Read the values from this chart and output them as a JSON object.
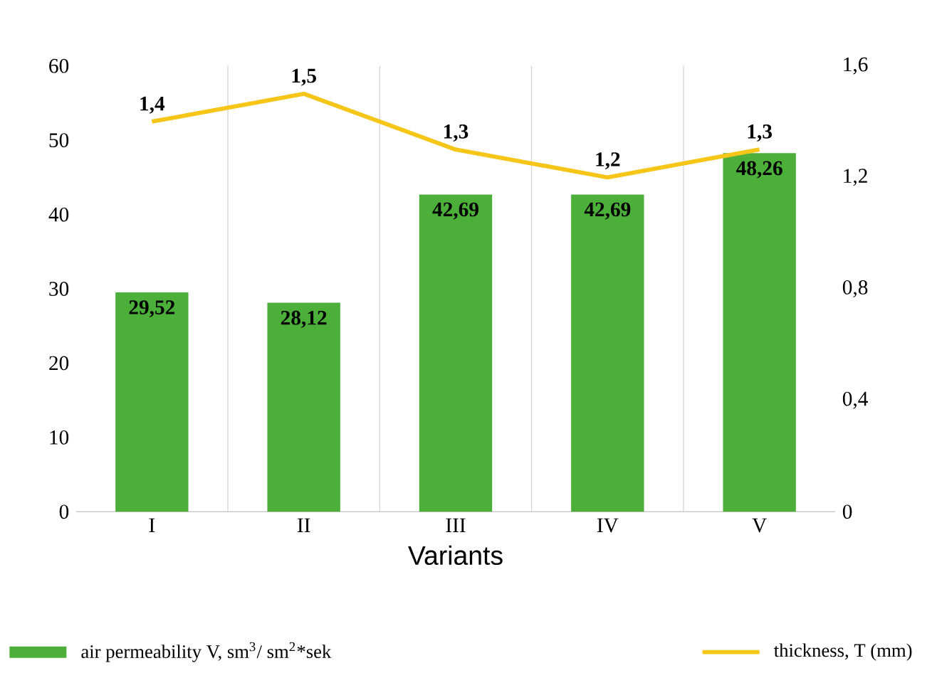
{
  "chart_data": {
    "type": "bar",
    "xlabel": "Variants",
    "categories": [
      "I",
      "II",
      "III",
      "IV",
      "V"
    ],
    "series": [
      {
        "name": "air permeability V, sm$^{3}$/ sm$^{2}$*sek",
        "color": "#4caf3a",
        "values": [
          29.52,
          28.12,
          42.69,
          42.69,
          48.26
        ],
        "value_labels": [
          "29,52",
          "28,12",
          "42,69",
          "42,69",
          "48,26"
        ]
      },
      {
        "name": "thickness, T (mm)",
        "type": "line",
        "axis": "y2",
        "color": "#f5c518",
        "values": [
          1.4,
          1.5,
          1.3,
          1.2,
          1.3
        ],
        "value_labels": [
          "1,4",
          "1,5",
          "1,3",
          "1,2",
          "1,3"
        ]
      }
    ],
    "ylim": [
      0,
      60
    ],
    "yticks": [
      0,
      10,
      20,
      30,
      40,
      50,
      60
    ],
    "y2lim": [
      0,
      1.6
    ],
    "y2ticks": [
      0,
      {
        "value": 0.4,
        "label": "0,4"
      },
      {
        "value": 0.8,
        "label": "0,8"
      },
      {
        "value": 1.2,
        "label": "1,2"
      },
      {
        "value": 1.6,
        "label": "1,6"
      }
    ],
    "legend": "bottom"
  }
}
